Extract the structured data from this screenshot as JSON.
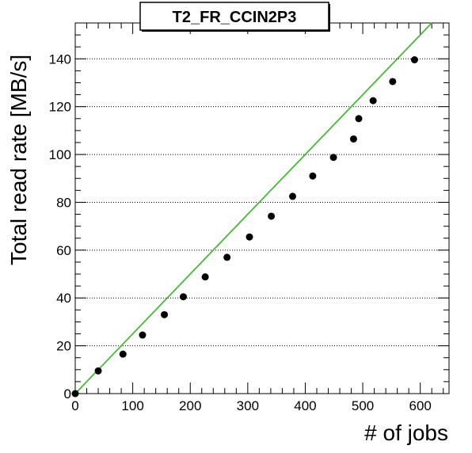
{
  "chart_data": {
    "type": "scatter",
    "title": "T2_FR_CCIN2P3",
    "xlabel": "# of jobs",
    "ylabel": "Total read rate [MB/s]",
    "xlim": [
      0,
      650
    ],
    "ylim": [
      0,
      155
    ],
    "x_ticks": [
      0,
      100,
      200,
      300,
      400,
      500,
      600
    ],
    "y_ticks": [
      0,
      20,
      40,
      60,
      80,
      100,
      120,
      140
    ],
    "grid": "horizontal-dotted",
    "legend": "none",
    "series": [
      {
        "marker_color": "#000000",
        "points": [
          {
            "x": 0,
            "y": 0
          },
          {
            "x": 40,
            "y": 9.5
          },
          {
            "x": 83,
            "y": 16.5
          },
          {
            "x": 117,
            "y": 24.5
          },
          {
            "x": 155,
            "y": 33
          },
          {
            "x": 188,
            "y": 40.5
          },
          {
            "x": 226,
            "y": 48.8
          },
          {
            "x": 264,
            "y": 57
          },
          {
            "x": 303,
            "y": 65.5
          },
          {
            "x": 341,
            "y": 74.2
          },
          {
            "x": 378,
            "y": 82.5
          },
          {
            "x": 413,
            "y": 91
          },
          {
            "x": 449,
            "y": 98.8
          },
          {
            "x": 484,
            "y": 106.5
          },
          {
            "x": 493,
            "y": 115
          },
          {
            "x": 518,
            "y": 122.5
          },
          {
            "x": 552,
            "y": 130.5
          },
          {
            "x": 590,
            "y": 139.6
          }
        ]
      }
    ],
    "fit_line": {
      "color": "#44bb33",
      "x": [
        0,
        620
      ],
      "y": [
        0,
        155
      ]
    }
  }
}
